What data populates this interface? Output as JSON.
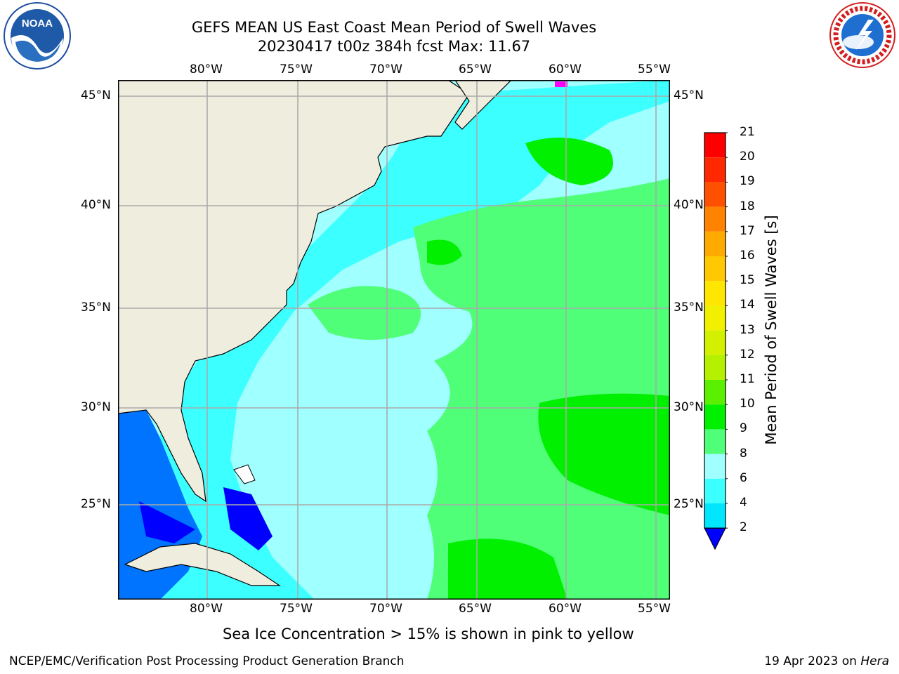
{
  "header": {
    "title_line1": "GEFS MEAN US East Coast Mean Period of Swell Waves",
    "title_line2": "20230417 t00z 384h fcst   Max: 11.67"
  },
  "logos": {
    "left": {
      "icon": "noaa-logo-icon",
      "text": "NOAA"
    },
    "right": {
      "icon": "nws-logo-icon",
      "text": "NATIONAL WEATHER SERVICE"
    }
  },
  "map": {
    "lon_labels": [
      "80°W",
      "75°W",
      "70°W",
      "65°W",
      "60°W",
      "55°W"
    ],
    "lat_labels": [
      "45°N",
      "40°N",
      "35°N",
      "30°N",
      "25°N"
    ],
    "land_color": "#efedde",
    "ocean_base_color": "#a0ffff"
  },
  "colorbar": {
    "label": "Mean Period of Swell Waves [s]",
    "ticks": [
      "2",
      "4",
      "6",
      "8",
      "9",
      "10",
      "11",
      "12",
      "13",
      "14",
      "15",
      "16",
      "17",
      "18",
      "19",
      "20",
      "21"
    ],
    "colors": [
      "#0073ff",
      "#00e6ff",
      "#3cffff",
      "#a0ffff",
      "#50ff78",
      "#00f000",
      "#5af000",
      "#b4f000",
      "#d2f000",
      "#f0f000",
      "#ffe600",
      "#ffc800",
      "#ffaa00",
      "#ff8200",
      "#ff5000",
      "#ff2800",
      "#ff0000"
    ],
    "extend_color": "#0000ff"
  },
  "note": "Sea Ice Concentration > 15% is shown in pink to yellow",
  "footer": {
    "left": "NCEP/EMC/Verification Post Processing Product Generation Branch",
    "right_prefix": "19 Apr 2023 on ",
    "right_host": "Hera"
  }
}
